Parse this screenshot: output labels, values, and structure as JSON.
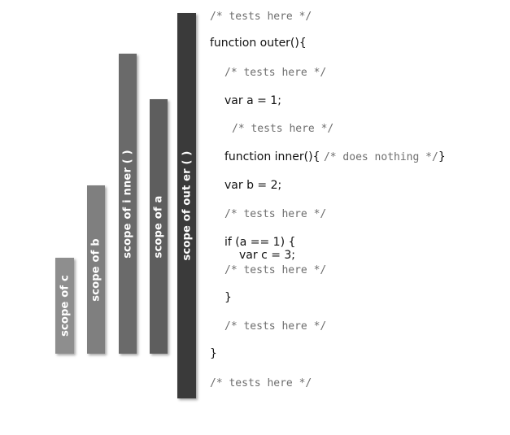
{
  "scopes": [
    {
      "label": "scope of c",
      "color": "#8e8e8e"
    },
    {
      "label": "scope of b",
      "color": "#7f7f7f"
    },
    {
      "label": "scope of i nner ( )",
      "color": "#6a6a6a"
    },
    {
      "label": "scope of a",
      "color": "#5e5e5e"
    },
    {
      "label": "scope of out er ( )",
      "color": "#3a3a3a"
    }
  ],
  "code": {
    "comment_top": "/* tests here */",
    "outer_open": "function outer(){",
    "comment_outer": "/* tests here */",
    "var_a": "var a = 1;",
    "comment_after_a": "/* tests here */",
    "inner_def": "function inner(){",
    "inner_body_comment": "/* does nothing */",
    "inner_close": "}",
    "var_b": "var b = 2;",
    "comment_after_b": "/* tests here */",
    "if_open": "if (a == 1) {",
    "var_c": "var c = 3;",
    "comment_in_if": "/* tests here */",
    "if_close": "}",
    "comment_after_if": "/* tests here */",
    "outer_close": "}",
    "comment_bottom": "/* tests here */"
  }
}
